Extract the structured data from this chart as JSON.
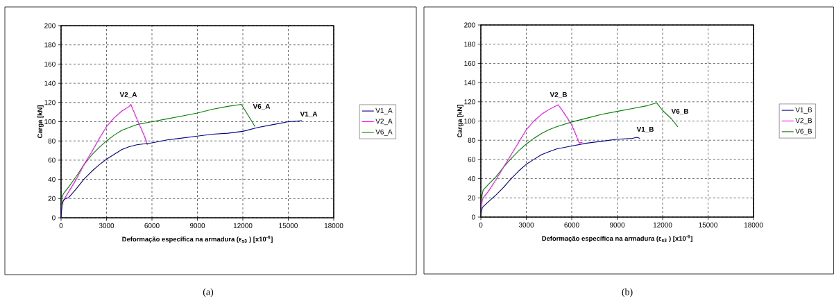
{
  "chart_data": [
    {
      "type": "line",
      "xlabel": "Deformação específica na armadura (ε$_{s3}$ ) [x10$^{-6}$]",
      "ylabel": "Carga [kN]",
      "xlim": [
        0,
        18000
      ],
      "ylim": [
        0,
        200
      ],
      "xticks": [
        0,
        3000,
        6000,
        9000,
        12000,
        15000,
        18000
      ],
      "yticks": [
        0,
        20,
        40,
        60,
        80,
        100,
        120,
        140,
        160,
        180,
        200
      ],
      "grid": true,
      "legend": "right",
      "marker": "none",
      "line_style": "solid",
      "series": [
        {
          "name": "V1_A",
          "color": "#000080",
          "x": [
            0,
            30,
            80,
            150,
            300,
            500,
            1000,
            1500,
            2000,
            2500,
            3000,
            3500,
            4000,
            4500,
            5000,
            6000,
            7000,
            8000,
            9000,
            10000,
            11000,
            12000,
            13000,
            14000,
            15000,
            15900
          ],
          "values": [
            0,
            8,
            15,
            18,
            20,
            21,
            30,
            40,
            48,
            55,
            61,
            66,
            71,
            74,
            76,
            78,
            81,
            83,
            85,
            87,
            88,
            90,
            94,
            97,
            100,
            101
          ]
        },
        {
          "name": "V2_A",
          "color": "#ff00ff",
          "x": [
            0,
            50,
            150,
            500,
            1000,
            1500,
            2000,
            2500,
            3000,
            3500,
            4000,
            4500,
            4600,
            5000,
            5500,
            5700
          ],
          "values": [
            0,
            12,
            18,
            27,
            40,
            55,
            68,
            82,
            95,
            104,
            111,
            116,
            118,
            103,
            85,
            76
          ]
        },
        {
          "name": "V6_A",
          "color": "#008000",
          "x": [
            0,
            50,
            150,
            500,
            1000,
            1500,
            2000,
            2500,
            3000,
            3500,
            4000,
            4500,
            5000,
            6000,
            7000,
            8000,
            9000,
            10000,
            11000,
            11900,
            12300,
            12800
          ],
          "values": [
            0,
            20,
            25,
            32,
            43,
            55,
            65,
            73,
            80,
            86,
            91,
            94,
            97,
            100,
            103,
            106,
            109,
            113,
            116,
            118,
            108,
            95
          ]
        }
      ],
      "annotations": [
        "V2_A",
        "V6_A",
        "V1_A",
        "(a)"
      ]
    },
    {
      "type": "line",
      "xlabel": "Deformação específica na armadura (ε$_{s3}$ ) [x10$^{-6}$]",
      "ylabel": "Carga [kN]",
      "xlim": [
        0,
        18000
      ],
      "ylim": [
        0,
        200
      ],
      "xticks": [
        0,
        3000,
        6000,
        9000,
        12000,
        15000,
        18000
      ],
      "yticks": [
        0,
        20,
        40,
        60,
        80,
        100,
        120,
        140,
        160,
        180,
        200
      ],
      "grid": true,
      "legend": "right",
      "marker": "none",
      "line_style": "solid",
      "series": [
        {
          "name": "V1_B",
          "color": "#000080",
          "x": [
            0,
            30,
            100,
            500,
            1000,
            1500,
            2000,
            2500,
            3000,
            3500,
            4000,
            4500,
            5000,
            6000,
            7000,
            8000,
            9000,
            10000,
            10300,
            10500
          ],
          "values": [
            0,
            5,
            10,
            16,
            23,
            31,
            40,
            48,
            55,
            60,
            65,
            68,
            71,
            74,
            77,
            79,
            81,
            82,
            83,
            82
          ]
        },
        {
          "name": "V2_B",
          "color": "#ff00ff",
          "x": [
            0,
            50,
            150,
            500,
            1000,
            1500,
            2000,
            2500,
            3000,
            3500,
            4000,
            4500,
            5000,
            5100,
            5500,
            6000,
            6500,
            6700
          ],
          "values": [
            0,
            15,
            20,
            27,
            39,
            52,
            65,
            78,
            91,
            100,
            107,
            112,
            116,
            117,
            108,
            96,
            77,
            78
          ]
        },
        {
          "name": "V6_B",
          "color": "#008000",
          "x": [
            0,
            50,
            150,
            500,
            1000,
            1500,
            2000,
            2500,
            3000,
            3500,
            4000,
            4500,
            5000,
            6000,
            7000,
            8000,
            9000,
            10000,
            11000,
            11600,
            12000,
            12600,
            13000
          ],
          "values": [
            0,
            20,
            28,
            34,
            42,
            52,
            61,
            69,
            76,
            82,
            87,
            91,
            94,
            99,
            103,
            107,
            110,
            113,
            116,
            119,
            111,
            102,
            94
          ]
        }
      ],
      "annotations": [
        "V2_B",
        "V6_B",
        "V1_B",
        "(b)"
      ]
    }
  ]
}
